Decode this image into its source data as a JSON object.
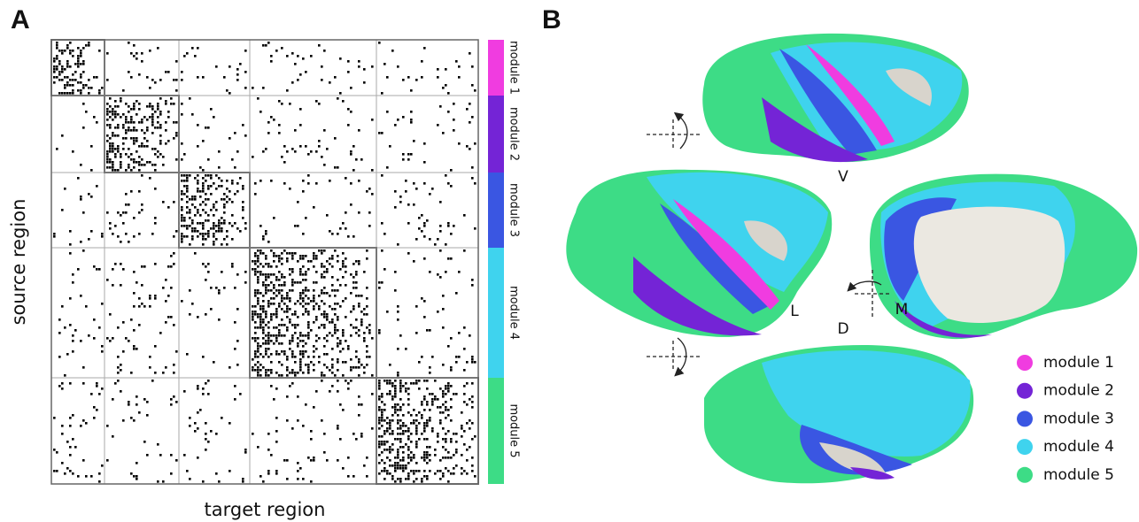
{
  "panels": {
    "a": "A",
    "b": "B"
  },
  "matrix": {
    "y_label": "source region",
    "x_label": "target region",
    "modules": [
      {
        "label": "module 1",
        "color": "#f03ce0"
      },
      {
        "label": "module 2",
        "color": "#7424d6"
      },
      {
        "label": "module 3",
        "color": "#3a56e2"
      },
      {
        "label": "module 4",
        "color": "#3fd3ee"
      },
      {
        "label": "module 5",
        "color": "#3ddc86"
      }
    ]
  },
  "views": {
    "ventral": "V",
    "lateral": "L",
    "medial": "M",
    "dorsal": "D"
  },
  "legend": {
    "items": [
      {
        "label": "module 1",
        "color": "#f03ce0"
      },
      {
        "label": "module 2",
        "color": "#7424d6"
      },
      {
        "label": "module 3",
        "color": "#3a56e2"
      },
      {
        "label": "module 4",
        "color": "#3fd3ee"
      },
      {
        "label": "module 5",
        "color": "#3ddc86"
      }
    ]
  }
}
